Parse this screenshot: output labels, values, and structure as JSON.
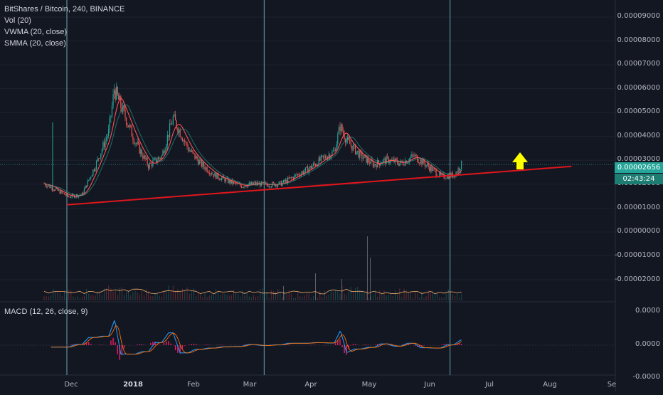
{
  "header": {
    "symbol_line": "BitShares / Bitcoin, 240, BINANCE",
    "indicators": [
      "Vol (20)",
      "VWMA (20, close)",
      "SMMA (20, close)"
    ]
  },
  "macd": {
    "label": "MACD (12, 26, close, 9)"
  },
  "price_axis": {
    "labels": [
      "0.00009000",
      "0.00008000",
      "0.00007000",
      "0.00006000",
      "0.00005000",
      "0.00004000",
      "0.00003000",
      "0.00002000",
      "0.00001000",
      "0.00000000",
      "-0.00001000",
      "-0.00002000"
    ]
  },
  "macd_axis": {
    "labels": [
      "0.0000",
      "0.0000",
      "-0.0000"
    ]
  },
  "time_axis": {
    "labels": [
      "Dec",
      "2018",
      "Feb",
      "Mar",
      "Apr",
      "May",
      "Jun",
      "Jul",
      "Aug",
      "Se"
    ]
  },
  "last_price": {
    "value": "0.00002656",
    "countdown": "02:43:24"
  },
  "colors": {
    "background": "#131722",
    "candle_up": "#26a69a",
    "candle_down": "#ef5350",
    "trendline": "#e0161c",
    "vertical_marker": "#7ec8d8",
    "arrow": "#ffff00",
    "vwma": "#ff5252",
    "smma": "#26a69a"
  },
  "chart_data": {
    "type": "line",
    "title": "BitShares / Bitcoin, 240, BINANCE",
    "xlabel": "",
    "ylabel": "",
    "ylim": [
      -2.5e-05,
      9.5e-05
    ],
    "x": [
      "2017-11-27",
      "2017-12-03",
      "2017-12-10",
      "2017-12-17",
      "2017-12-24",
      "2017-12-31",
      "2018-01-03",
      "2018-01-07",
      "2018-01-14",
      "2018-01-21",
      "2018-01-28",
      "2018-02-03",
      "2018-02-11",
      "2018-02-18",
      "2018-02-25",
      "2018-03-04",
      "2018-03-11",
      "2018-03-18",
      "2018-03-25",
      "2018-04-01",
      "2018-04-08",
      "2018-04-15",
      "2018-04-22",
      "2018-04-29",
      "2018-05-02",
      "2018-05-06",
      "2018-05-13",
      "2018-05-20",
      "2018-05-27",
      "2018-06-03",
      "2018-06-10",
      "2018-06-17",
      "2018-06-24",
      "2018-07-01",
      "2018-07-05"
    ],
    "series": [
      {
        "values": [
          1.85e-05,
          1.6e-05,
          1.3e-05,
          1.4e-05,
          2.6e-05,
          4e-05,
          5.8e-05,
          5e-05,
          3.6e-05,
          2.6e-05,
          3e-05,
          4.6e-05,
          3.3e-05,
          2.65e-05,
          2.2e-05,
          1.95e-05,
          1.75e-05,
          1.85e-05,
          1.8e-05,
          1.85e-05,
          2.15e-05,
          2.45e-05,
          2.85e-05,
          3.2e-05,
          4.25e-05,
          3.6e-05,
          3e-05,
          2.65e-05,
          2.85e-05,
          2.7e-05,
          3e-05,
          2.6e-05,
          2.15e-05,
          2.2e-05,
          2.65e-05
        ]
      }
    ],
    "annotations": [
      {
        "type": "trendline",
        "from": [
          "2017-12-09",
          9.6e-06
        ],
        "to": [
          "2018-09-01",
          2.57e-05
        ]
      }
    ],
    "vertical_markers": [
      "2017-12-09",
      "2018-03-23",
      "2018-06-29"
    ]
  }
}
